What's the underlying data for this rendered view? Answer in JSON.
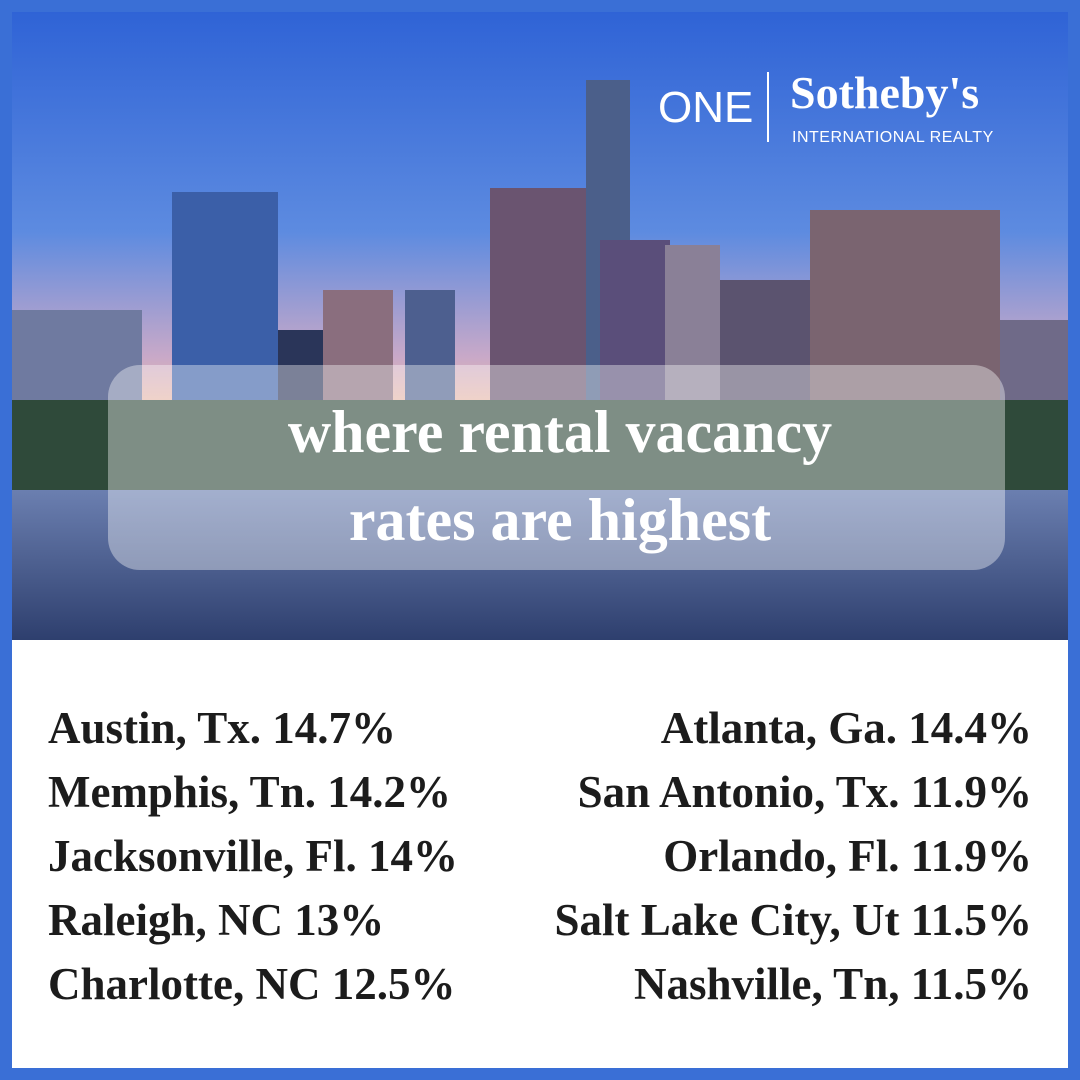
{
  "logo": {
    "brand": "ONE",
    "name": "Sotheby's",
    "tagline": "INTERNATIONAL REALTY"
  },
  "title_lines": [
    "where rental vacancy",
    "rates are highest"
  ],
  "left_list": [
    {
      "city": "Austin, Tx.",
      "rate": "14.7%"
    },
    {
      "city": "Memphis, Tn.",
      "rate": "14.2%"
    },
    {
      "city": "Jacksonville, Fl.",
      "rate": "14%"
    },
    {
      "city": "Raleigh, NC",
      "rate": "13%"
    },
    {
      "city": "Charlotte, NC",
      "rate": "12.5%"
    }
  ],
  "right_list": [
    {
      "city": "Atlanta, Ga.",
      "rate": "14.4%"
    },
    {
      "city": "San Antonio, Tx.",
      "rate": "11.9%"
    },
    {
      "city": "Orlando, Fl.",
      "rate": "11.9%"
    },
    {
      "city": "Salt Lake City, Ut",
      "rate": "11.5%"
    },
    {
      "city": "Nashville, Tn,",
      "rate": "11.5%"
    }
  ]
}
